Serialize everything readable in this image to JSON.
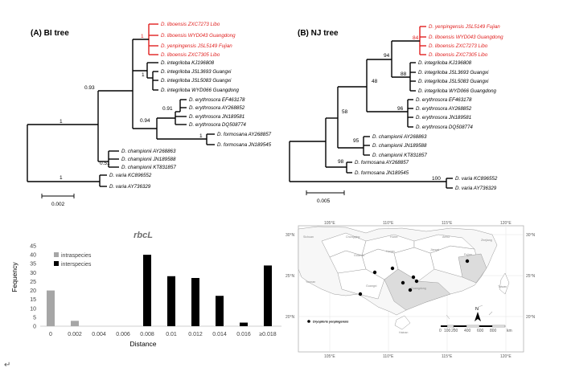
{
  "bi_tree": {
    "title": "(A) BI tree",
    "scale_label": "0.002",
    "supports": {
      "root": "1",
      "main": "0.93",
      "libo": "1",
      "integ": "1",
      "eryth_form": "0.94",
      "eryth": "0.91",
      "form": "1",
      "champ": "0.51",
      "varia": "1"
    },
    "tips": [
      "D. liboensis ZXC7273 Libo",
      "D. liboensis WYD043 Guangdong",
      "D. yenpingensis JSL5149 Fujian",
      "D. liboensis ZXC7305 Libo",
      "D. integriloba KJ196808",
      "D. integriloba JSL3693 Guangxi",
      "D. integriloba JSL5083 Guangxi",
      "D. integriloba WYD066 Guangdong",
      "D. erythrosora EF463178",
      "D. erythrosora AY268852",
      "D. erythrosora JN189581",
      "D. erythrosora DQ508774",
      "D. formosana AY268857",
      "D. formosana JN189545",
      "D. championii AY268863",
      "D. championii JN189588",
      "D. championii KT831857",
      "D. varia KC896552",
      "D. varia AY736329"
    ]
  },
  "nj_tree": {
    "title": "(B) NJ tree",
    "scale_label": "0.005",
    "supports": {
      "libo": "84",
      "main": "94",
      "integ": "88",
      "n48": "48",
      "n58": "58",
      "eryth": "96",
      "champ": "95",
      "form": "98",
      "varia": "100"
    },
    "tips": [
      "D. yenpingensis JSL5149 Fujian",
      "D. liboensis WYD043 Guangdong",
      "D. liboensis ZXC7273 Libo",
      "D. liboensis ZXC7305 Libo",
      "D. integriloba KJ196808",
      "D. integriloba JSL3693 Guangxi",
      "D. integriloba JSL5083 Guangxi",
      "D. integriloba WYD066 Guangdong",
      "D. erythrosora EF463178",
      "D. erythrosora AY268852",
      "D. erythrosora JN189581",
      "D. erythrosora DQ508774",
      "D. championii AY268863",
      "D. championii JN189588",
      "D. championii KT831857",
      "D. formosana AY268857",
      "D. formosana JN189545",
      "D. varia KC896552",
      "D. varia AY736329"
    ]
  },
  "chart_data": {
    "type": "bar",
    "title": "rbcL",
    "xlabel": "Distance",
    "ylabel": "Fequency",
    "ylim": [
      0,
      45
    ],
    "yticks": [
      0,
      5,
      10,
      15,
      20,
      25,
      30,
      35,
      40,
      45
    ],
    "categories": [
      "0",
      "0.002",
      "0.004",
      "0.006",
      "0.008",
      "0.01",
      "0.012",
      "0.014",
      "0.016",
      "≥0.018"
    ],
    "series": [
      {
        "name": "intraspecies",
        "color": "#a6a6a6",
        "values": [
          20,
          3,
          0,
          0,
          0,
          0,
          0,
          0,
          0,
          0
        ]
      },
      {
        "name": "interspecies",
        "color": "#000000",
        "values": [
          0,
          0,
          0,
          0,
          40,
          28,
          27,
          17,
          2,
          34
        ]
      }
    ]
  },
  "map": {
    "legend": "Dryopteris yenpingensis",
    "north": "N",
    "scale_ticks": [
      "0",
      "100",
      "200",
      "400",
      "600",
      "800"
    ],
    "scale_unit": "km",
    "lon_labels": [
      "105°E",
      "110°E",
      "115°E",
      "120°E"
    ],
    "lat_labels": [
      "30°N",
      "25°N",
      "20°N"
    ],
    "region_labels": [
      "Sichuan",
      "Chongqing",
      "Hubei",
      "Anhui",
      "Hunan",
      "Jiangxi",
      "Zhejiang",
      "Guizhou",
      "Fujian",
      "Yunnan",
      "Guangxi",
      "Guangdong",
      "Taiwan",
      "Hainan"
    ],
    "points_count": 7
  },
  "footer_mark": "↵"
}
